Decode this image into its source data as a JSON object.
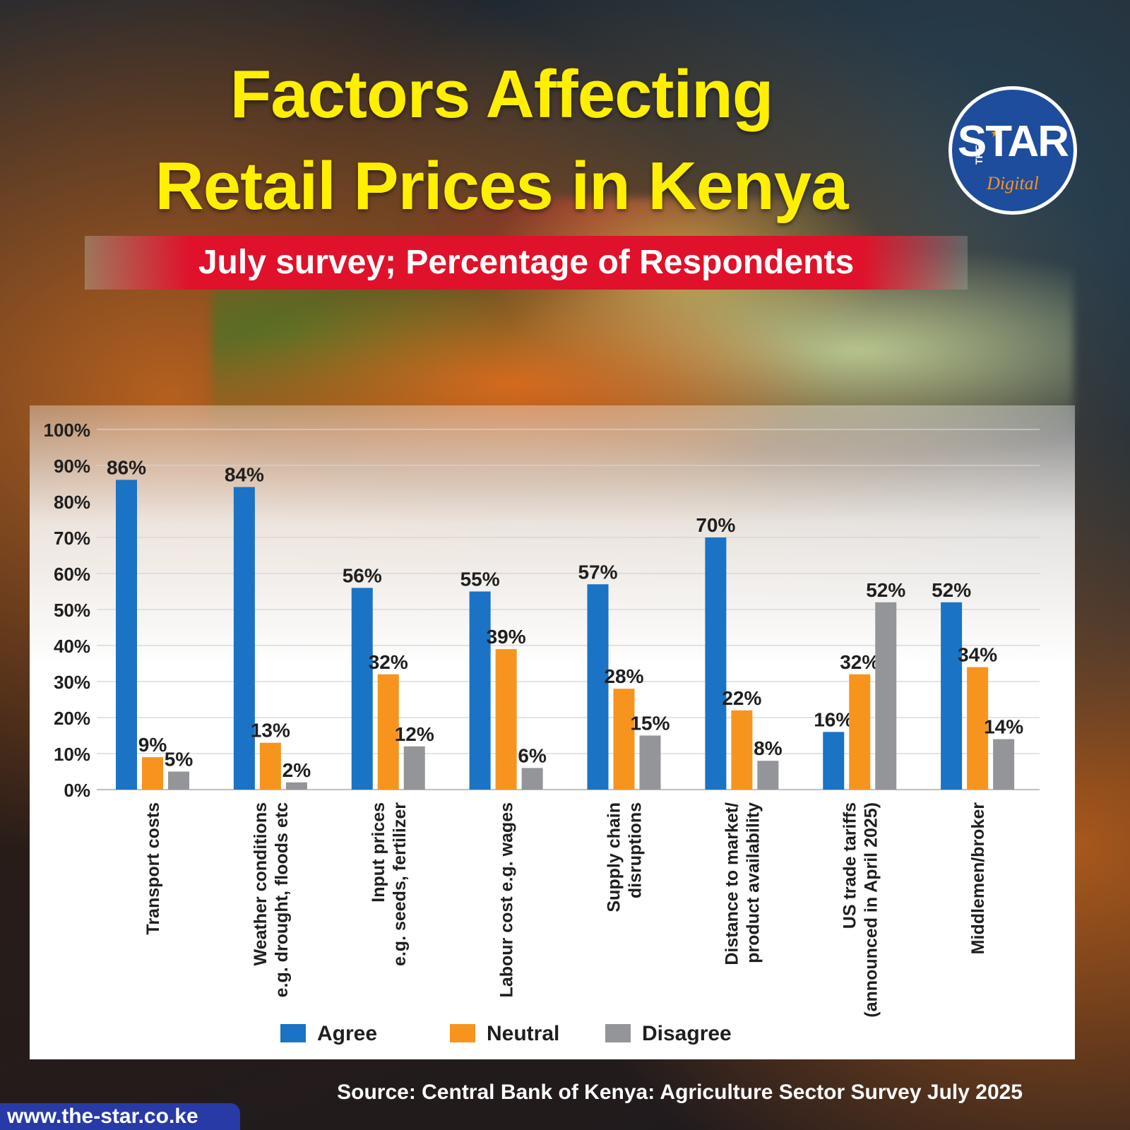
{
  "header": {
    "title_line1": "Factors Affecting",
    "title_line2": "Retail Prices in Kenya",
    "subtitle": "July survey; Percentage of Respondents"
  },
  "logo": {
    "the": "THE",
    "star": "STAR",
    "digital": "Digital"
  },
  "footer": {
    "source": "Source: Central Bank of Kenya: Agriculture Sector Survey July 2025",
    "url": "www.the-star.co.ke"
  },
  "colors": {
    "agree": "#1a73c4",
    "neutral": "#f7941d",
    "disagree": "#939598",
    "title": "#ffef00",
    "band": "#e0112a"
  },
  "chart_data": {
    "type": "bar",
    "title": "Factors Affecting Retail Prices in Kenya",
    "subtitle": "July survey; Percentage of Respondents",
    "categories": [
      [
        "Transport costs"
      ],
      [
        "Weather conditions",
        "e.g. drought, floods etc"
      ],
      [
        "Input prices",
        "e.g. seeds, fertilizer"
      ],
      [
        "Labour cost e.g. wages"
      ],
      [
        "Supply chain",
        "disruptions"
      ],
      [
        "Distance to market/",
        "product availability"
      ],
      [
        "US trade tariffs",
        "(announced in April 2025)"
      ],
      [
        "Middlemen/broker"
      ]
    ],
    "series": [
      {
        "name": "Agree",
        "color": "#1a73c4",
        "values": [
          86,
          84,
          56,
          55,
          57,
          70,
          16,
          52
        ]
      },
      {
        "name": "Neutral",
        "color": "#f7941d",
        "values": [
          9,
          13,
          32,
          39,
          28,
          22,
          32,
          34
        ]
      },
      {
        "name": "Disagree",
        "color": "#939598",
        "values": [
          5,
          2,
          12,
          6,
          15,
          8,
          52,
          14
        ]
      }
    ],
    "yticks": [
      "0%",
      "10%",
      "20%",
      "30%",
      "40%",
      "50%",
      "60%",
      "70%",
      "80%",
      "90%",
      "100%"
    ],
    "ylim": [
      0,
      100
    ],
    "value_suffix": "%",
    "grid": true,
    "legend_position": "bottom"
  }
}
